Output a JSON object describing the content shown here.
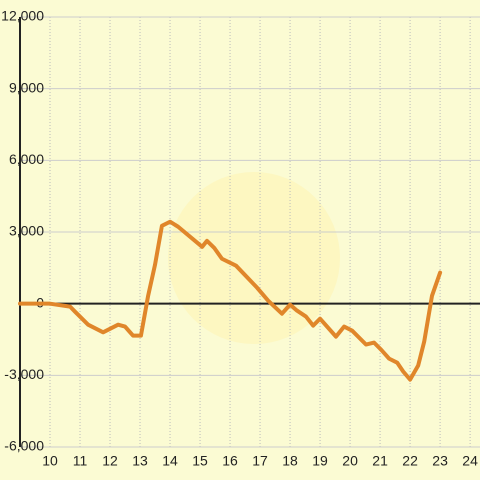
{
  "chart_data": {
    "type": "line",
    "x": [
      9,
      10,
      10.67,
      10.83,
      11.27,
      11.77,
      12.27,
      12.5,
      12.77,
      13.03,
      13.27,
      13.5,
      13.73,
      14,
      14.27,
      15.07,
      15.23,
      15.47,
      15.73,
      16.2,
      16.9,
      17.27,
      17.73,
      18,
      18.23,
      18.53,
      18.77,
      19,
      19.53,
      19.8,
      20.07,
      20.53,
      20.8,
      21.03,
      21.3,
      21.57,
      21.77,
      22,
      22.27,
      22.47,
      22.73,
      23
    ],
    "series": [
      {
        "color": "#e0862a",
        "values": [
          0,
          0,
          -125,
          -330,
          -880,
          -1200,
          -880,
          -960,
          -1340,
          -1340,
          330,
          1630,
          3260,
          3430,
          3220,
          2380,
          2630,
          2340,
          1880,
          1590,
          670,
          125,
          -420,
          -40,
          -290,
          -540,
          -920,
          -630,
          -1380,
          -960,
          -1130,
          -1710,
          -1630,
          -1920,
          -2300,
          -2470,
          -2840,
          -3180,
          -2590,
          -1590,
          330,
          1300
        ]
      }
    ],
    "xlim": [
      9,
      24.33
    ],
    "ylim": [
      -6000,
      12000
    ],
    "xticks": [
      10,
      11,
      12,
      13,
      14,
      15,
      16,
      17,
      18,
      19,
      20,
      21,
      22,
      23,
      24
    ],
    "yticks": [
      {
        "value": -6000,
        "label": "-6,000"
      },
      {
        "value": -3000,
        "label": "-3,000"
      },
      0,
      {
        "value": 3000,
        "label": "3,000"
      },
      {
        "value": 6000,
        "label": "6,000"
      },
      {
        "value": 9000,
        "label": "9,000"
      },
      {
        "value": 12000,
        "label": "12,000"
      }
    ],
    "grid": true
  }
}
